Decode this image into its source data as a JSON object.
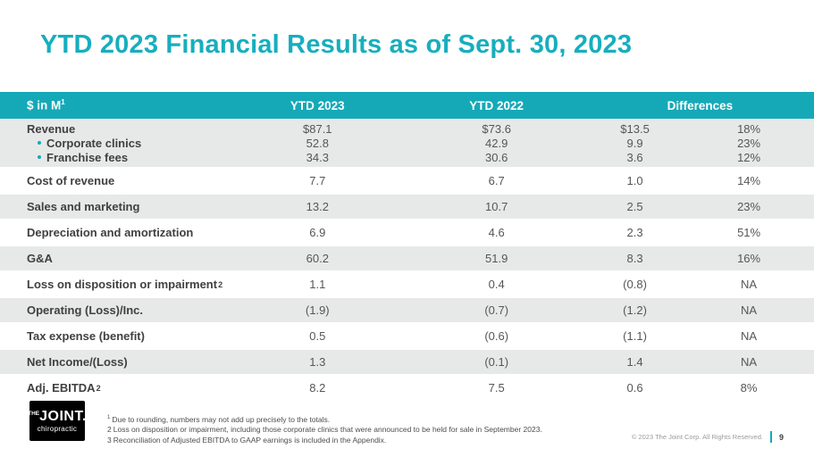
{
  "slide": {
    "title": "YTD 2023 Financial Results as of Sept. 30, 2023",
    "page_number": "9",
    "copyright": "© 2023 The Joint Corp. All Rights Reserved.",
    "accent_color": "#15a9b8",
    "stripe_color": "#e7e8e8",
    "logo": {
      "the": "THE",
      "joint": "JOINT.",
      "sub": "chiropractic"
    }
  },
  "table": {
    "header": {
      "col1": "$ in M",
      "col1_sup": "1",
      "col2": "YTD 2023",
      "col3": "YTD 2022",
      "col4": "Differences"
    },
    "bands": [
      {
        "shaded": true,
        "lines": [
          {
            "label": "Revenue",
            "bullet": false,
            "values": [
              "$87.1",
              "$73.6",
              "$13.5",
              "18%"
            ]
          },
          {
            "label": "Corporate clinics",
            "bullet": true,
            "values": [
              "52.8",
              "42.9",
              "9.9",
              "23%"
            ]
          },
          {
            "label": "Franchise fees",
            "bullet": true,
            "values": [
              "34.3",
              "30.6",
              "3.6",
              "12%"
            ]
          }
        ]
      },
      {
        "shaded": false,
        "lines": [
          {
            "label": "Cost of revenue",
            "bullet": false,
            "values": [
              "7.7",
              "6.7",
              "1.0",
              "14%"
            ]
          }
        ]
      },
      {
        "shaded": true,
        "lines": [
          {
            "label": "Sales and marketing",
            "bullet": false,
            "values": [
              "13.2",
              "10.7",
              "2.5",
              "23%"
            ]
          }
        ]
      },
      {
        "shaded": false,
        "lines": [
          {
            "label": "Depreciation and amortization",
            "bullet": false,
            "values": [
              "6.9",
              "4.6",
              "2.3",
              "51%"
            ]
          }
        ]
      },
      {
        "shaded": true,
        "lines": [
          {
            "label": "G&A",
            "bullet": false,
            "values": [
              "60.2",
              "51.9",
              "8.3",
              "16%"
            ]
          }
        ]
      },
      {
        "shaded": false,
        "lines": [
          {
            "label": "Loss on disposition or impairment",
            "sup": "2",
            "bullet": false,
            "values": [
              "1.1",
              "0.4",
              "(0.8)",
              "NA"
            ]
          }
        ]
      },
      {
        "shaded": true,
        "lines": [
          {
            "label": "Operating (Loss)/Inc.",
            "bullet": false,
            "values": [
              "(1.9)",
              "(0.7)",
              "(1.2)",
              "NA"
            ]
          }
        ]
      },
      {
        "shaded": false,
        "lines": [
          {
            "label": "Tax expense (benefit)",
            "bullet": false,
            "values": [
              "0.5",
              "(0.6)",
              "(1.1)",
              "NA"
            ]
          }
        ]
      },
      {
        "shaded": true,
        "lines": [
          {
            "label": "Net Income/(Loss)",
            "bullet": false,
            "values": [
              "1.3",
              "(0.1)",
              "1.4",
              "NA"
            ]
          }
        ]
      },
      {
        "shaded": false,
        "lines": [
          {
            "label": "Adj. EBITDA",
            "sup": "2",
            "bullet": false,
            "values": [
              "8.2",
              "7.5",
              "0.6",
              "8%"
            ]
          }
        ]
      }
    ]
  },
  "footnotes": [
    {
      "marker": "1",
      "superscript": true,
      "text": "Due to rounding, numbers may not add up precisely to the totals."
    },
    {
      "marker": "2",
      "superscript": false,
      "text": "Loss on disposition or impairment, including those corporate clinics that were announced to be held for sale in September 2023."
    },
    {
      "marker": "3",
      "superscript": false,
      "text": "Reconciliation of Adjusted EBITDA to GAAP earnings is included in the Appendix."
    }
  ]
}
